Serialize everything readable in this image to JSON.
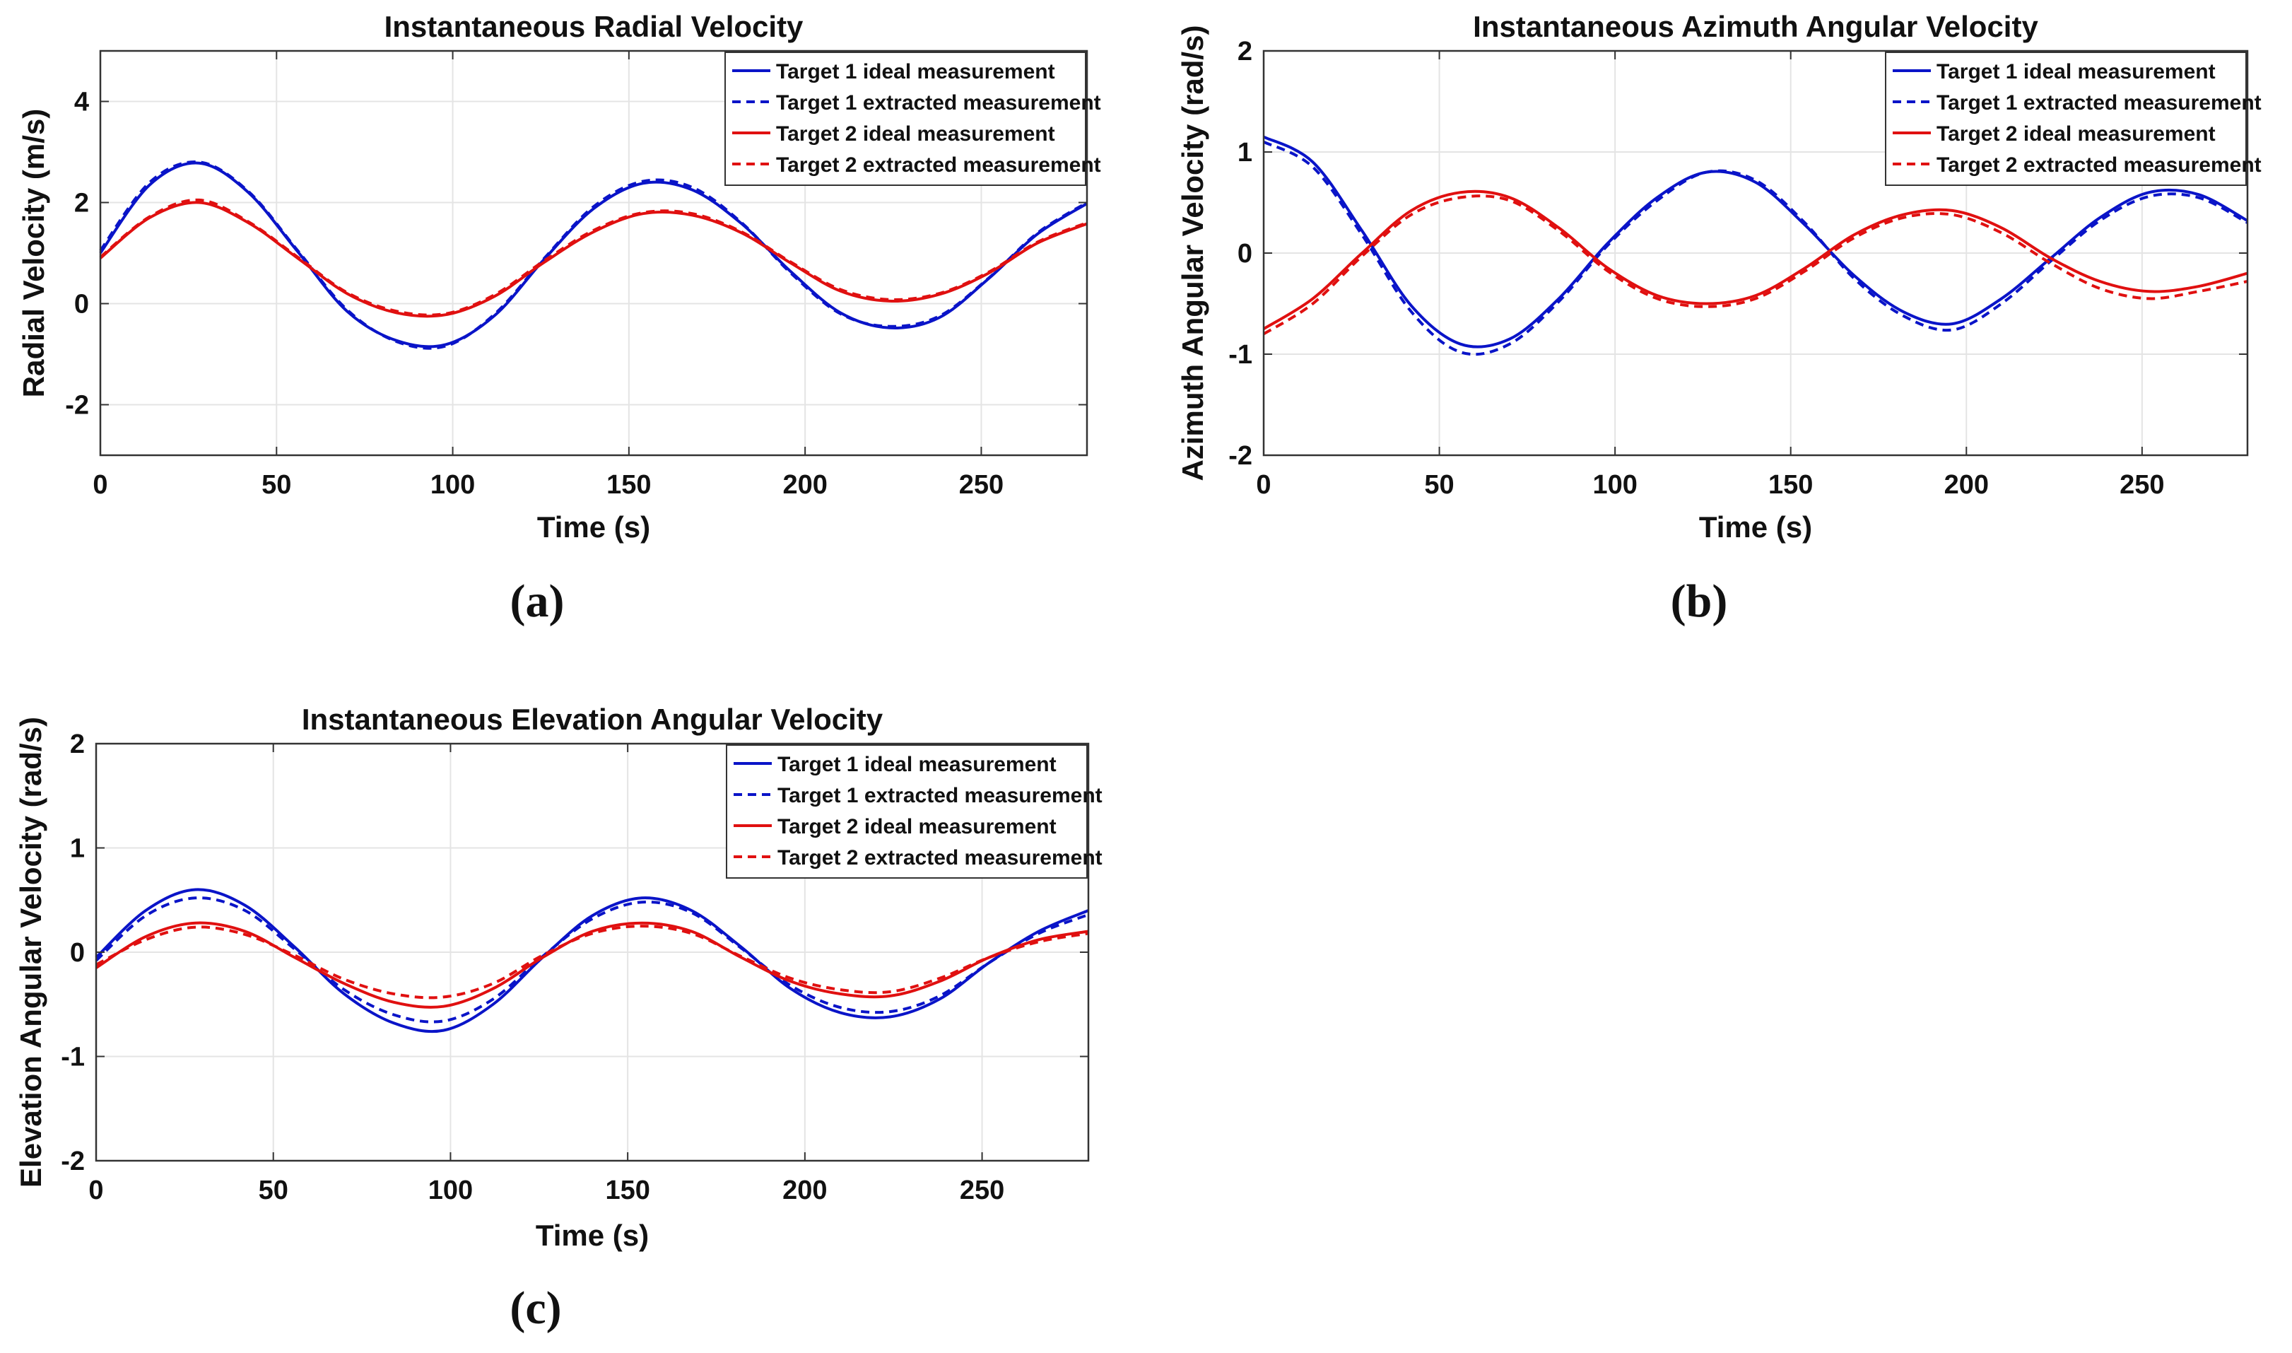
{
  "figure": {
    "panel_labels": [
      "(a)",
      "(b)",
      "(c)"
    ]
  },
  "chart_data": [
    {
      "id": "a",
      "type": "line",
      "title": "Instantaneous Radial Velocity",
      "xlabel": "Time (s)",
      "ylabel": "Radial Velocity (m/s)",
      "xlim": [
        0,
        280
      ],
      "ylim": [
        -3,
        5
      ],
      "xticks": [
        0,
        50,
        100,
        150,
        200,
        250
      ],
      "yticks": [
        -2,
        0,
        2,
        4
      ],
      "grid": true,
      "legend_position": "top-right",
      "x": [
        0,
        14,
        28,
        42,
        56,
        70,
        84,
        98,
        112,
        126,
        140,
        154,
        168,
        182,
        196,
        210,
        224,
        238,
        252,
        266,
        280
      ],
      "series": [
        {
          "name": "Target 1 ideal measurement",
          "color": "#0a14c8",
          "style": "solid",
          "values": [
            1.0,
            2.35,
            2.78,
            2.2,
            1.03,
            -0.15,
            -0.73,
            -0.81,
            -0.23,
            0.88,
            1.88,
            2.38,
            2.25,
            1.58,
            0.63,
            -0.18,
            -0.48,
            -0.28,
            0.49,
            1.38,
            1.98
          ]
        },
        {
          "name": "Target 1 extracted measurement",
          "color": "#0a14c8",
          "style": "dashed",
          "values": [
            1.05,
            2.4,
            2.8,
            2.22,
            1.05,
            -0.12,
            -0.75,
            -0.84,
            -0.2,
            0.9,
            1.92,
            2.42,
            2.3,
            1.6,
            0.6,
            -0.2,
            -0.45,
            -0.25,
            0.5,
            1.4,
            2.0
          ]
        },
        {
          "name": "Target 2 ideal measurement",
          "color": "#e01010",
          "style": "solid",
          "values": [
            0.9,
            1.7,
            2.0,
            1.6,
            0.9,
            0.2,
            -0.18,
            -0.22,
            0.15,
            0.82,
            1.42,
            1.78,
            1.75,
            1.4,
            0.8,
            0.25,
            0.05,
            0.18,
            0.6,
            1.2,
            1.58
          ]
        },
        {
          "name": "Target 2 extracted measurement",
          "color": "#e01010",
          "style": "dashed",
          "values": [
            0.92,
            1.72,
            2.05,
            1.62,
            0.92,
            0.22,
            -0.15,
            -0.2,
            0.18,
            0.85,
            1.45,
            1.8,
            1.78,
            1.42,
            0.82,
            0.28,
            0.08,
            0.2,
            0.62,
            1.22,
            1.6
          ]
        }
      ]
    },
    {
      "id": "b",
      "type": "line",
      "title": "Instantaneous Azimuth Angular Velocity",
      "xlabel": "Time (s)",
      "ylabel": "Azimuth Angular Velocity (rad/s)",
      "xlim": [
        0,
        280
      ],
      "ylim": [
        -2,
        2
      ],
      "xticks": [
        0,
        50,
        100,
        150,
        200,
        250
      ],
      "yticks": [
        -2,
        -1,
        0,
        1,
        2
      ],
      "grid": true,
      "legend_position": "top-right",
      "x": [
        0,
        14,
        28,
        42,
        56,
        70,
        84,
        98,
        112,
        126,
        140,
        154,
        168,
        182,
        196,
        210,
        224,
        238,
        252,
        266,
        280
      ],
      "series": [
        {
          "name": "Target 1 ideal measurement",
          "color": "#0a14c8",
          "style": "solid",
          "values": [
            1.15,
            0.9,
            0.22,
            -0.52,
            -0.9,
            -0.85,
            -0.45,
            0.1,
            0.55,
            0.8,
            0.7,
            0.28,
            -0.22,
            -0.58,
            -0.7,
            -0.45,
            -0.05,
            0.35,
            0.6,
            0.58,
            0.32
          ]
        },
        {
          "name": "Target 1 extracted measurement",
          "color": "#0a14c8",
          "style": "dashed",
          "values": [
            1.1,
            0.85,
            0.18,
            -0.58,
            -0.98,
            -0.9,
            -0.48,
            0.08,
            0.52,
            0.8,
            0.72,
            0.3,
            -0.25,
            -0.62,
            -0.76,
            -0.5,
            -0.08,
            0.32,
            0.56,
            0.55,
            0.3
          ]
        },
        {
          "name": "Target 2 ideal measurement",
          "color": "#e01010",
          "style": "solid",
          "values": [
            -0.75,
            -0.45,
            0.0,
            0.42,
            0.6,
            0.55,
            0.25,
            -0.15,
            -0.42,
            -0.5,
            -0.42,
            -0.15,
            0.18,
            0.38,
            0.42,
            0.25,
            -0.05,
            -0.28,
            -0.38,
            -0.33,
            -0.2
          ]
        },
        {
          "name": "Target 2 extracted measurement",
          "color": "#e01010",
          "style": "dashed",
          "values": [
            -0.8,
            -0.5,
            -0.03,
            0.38,
            0.55,
            0.52,
            0.22,
            -0.18,
            -0.45,
            -0.53,
            -0.45,
            -0.18,
            0.15,
            0.35,
            0.38,
            0.2,
            -0.1,
            -0.35,
            -0.45,
            -0.38,
            -0.28
          ]
        }
      ]
    },
    {
      "id": "c",
      "type": "line",
      "title": "Instantaneous Elevation Angular Velocity",
      "xlabel": "Time (s)",
      "ylabel": "Elevation Angular Velocity (rad/s)",
      "xlim": [
        0,
        280
      ],
      "ylim": [
        -2,
        2
      ],
      "xticks": [
        0,
        50,
        100,
        150,
        200,
        250
      ],
      "yticks": [
        -2,
        -1,
        0,
        1,
        2
      ],
      "grid": true,
      "legend_position": "top-right",
      "x": [
        0,
        14,
        28,
        42,
        56,
        70,
        84,
        98,
        112,
        126,
        140,
        154,
        168,
        182,
        196,
        210,
        224,
        238,
        252,
        266,
        280
      ],
      "series": [
        {
          "name": "Target 1 ideal measurement",
          "color": "#0a14c8",
          "style": "solid",
          "values": [
            -0.05,
            0.4,
            0.6,
            0.45,
            0.05,
            -0.4,
            -0.68,
            -0.75,
            -0.5,
            -0.05,
            0.35,
            0.52,
            0.4,
            0.05,
            -0.35,
            -0.58,
            -0.62,
            -0.45,
            -0.1,
            0.2,
            0.4
          ]
        },
        {
          "name": "Target 1 extracted measurement",
          "color": "#0a14c8",
          "style": "dashed",
          "values": [
            -0.08,
            0.35,
            0.52,
            0.4,
            0.03,
            -0.36,
            -0.6,
            -0.66,
            -0.45,
            -0.04,
            0.32,
            0.48,
            0.38,
            0.04,
            -0.32,
            -0.53,
            -0.57,
            -0.42,
            -0.1,
            0.18,
            0.36
          ]
        },
        {
          "name": "Target 2 ideal measurement",
          "color": "#e01010",
          "style": "solid",
          "values": [
            -0.15,
            0.15,
            0.28,
            0.2,
            -0.05,
            -0.3,
            -0.48,
            -0.52,
            -0.35,
            -0.05,
            0.2,
            0.28,
            0.2,
            -0.05,
            -0.28,
            -0.4,
            -0.42,
            -0.28,
            -0.05,
            0.12,
            0.2
          ]
        },
        {
          "name": "Target 2 extracted measurement",
          "color": "#e01010",
          "style": "dashed",
          "values": [
            -0.12,
            0.12,
            0.24,
            0.17,
            -0.03,
            -0.26,
            -0.4,
            -0.43,
            -0.3,
            -0.03,
            0.18,
            0.25,
            0.18,
            -0.04,
            -0.25,
            -0.36,
            -0.38,
            -0.25,
            -0.05,
            0.1,
            0.18
          ]
        }
      ]
    }
  ]
}
